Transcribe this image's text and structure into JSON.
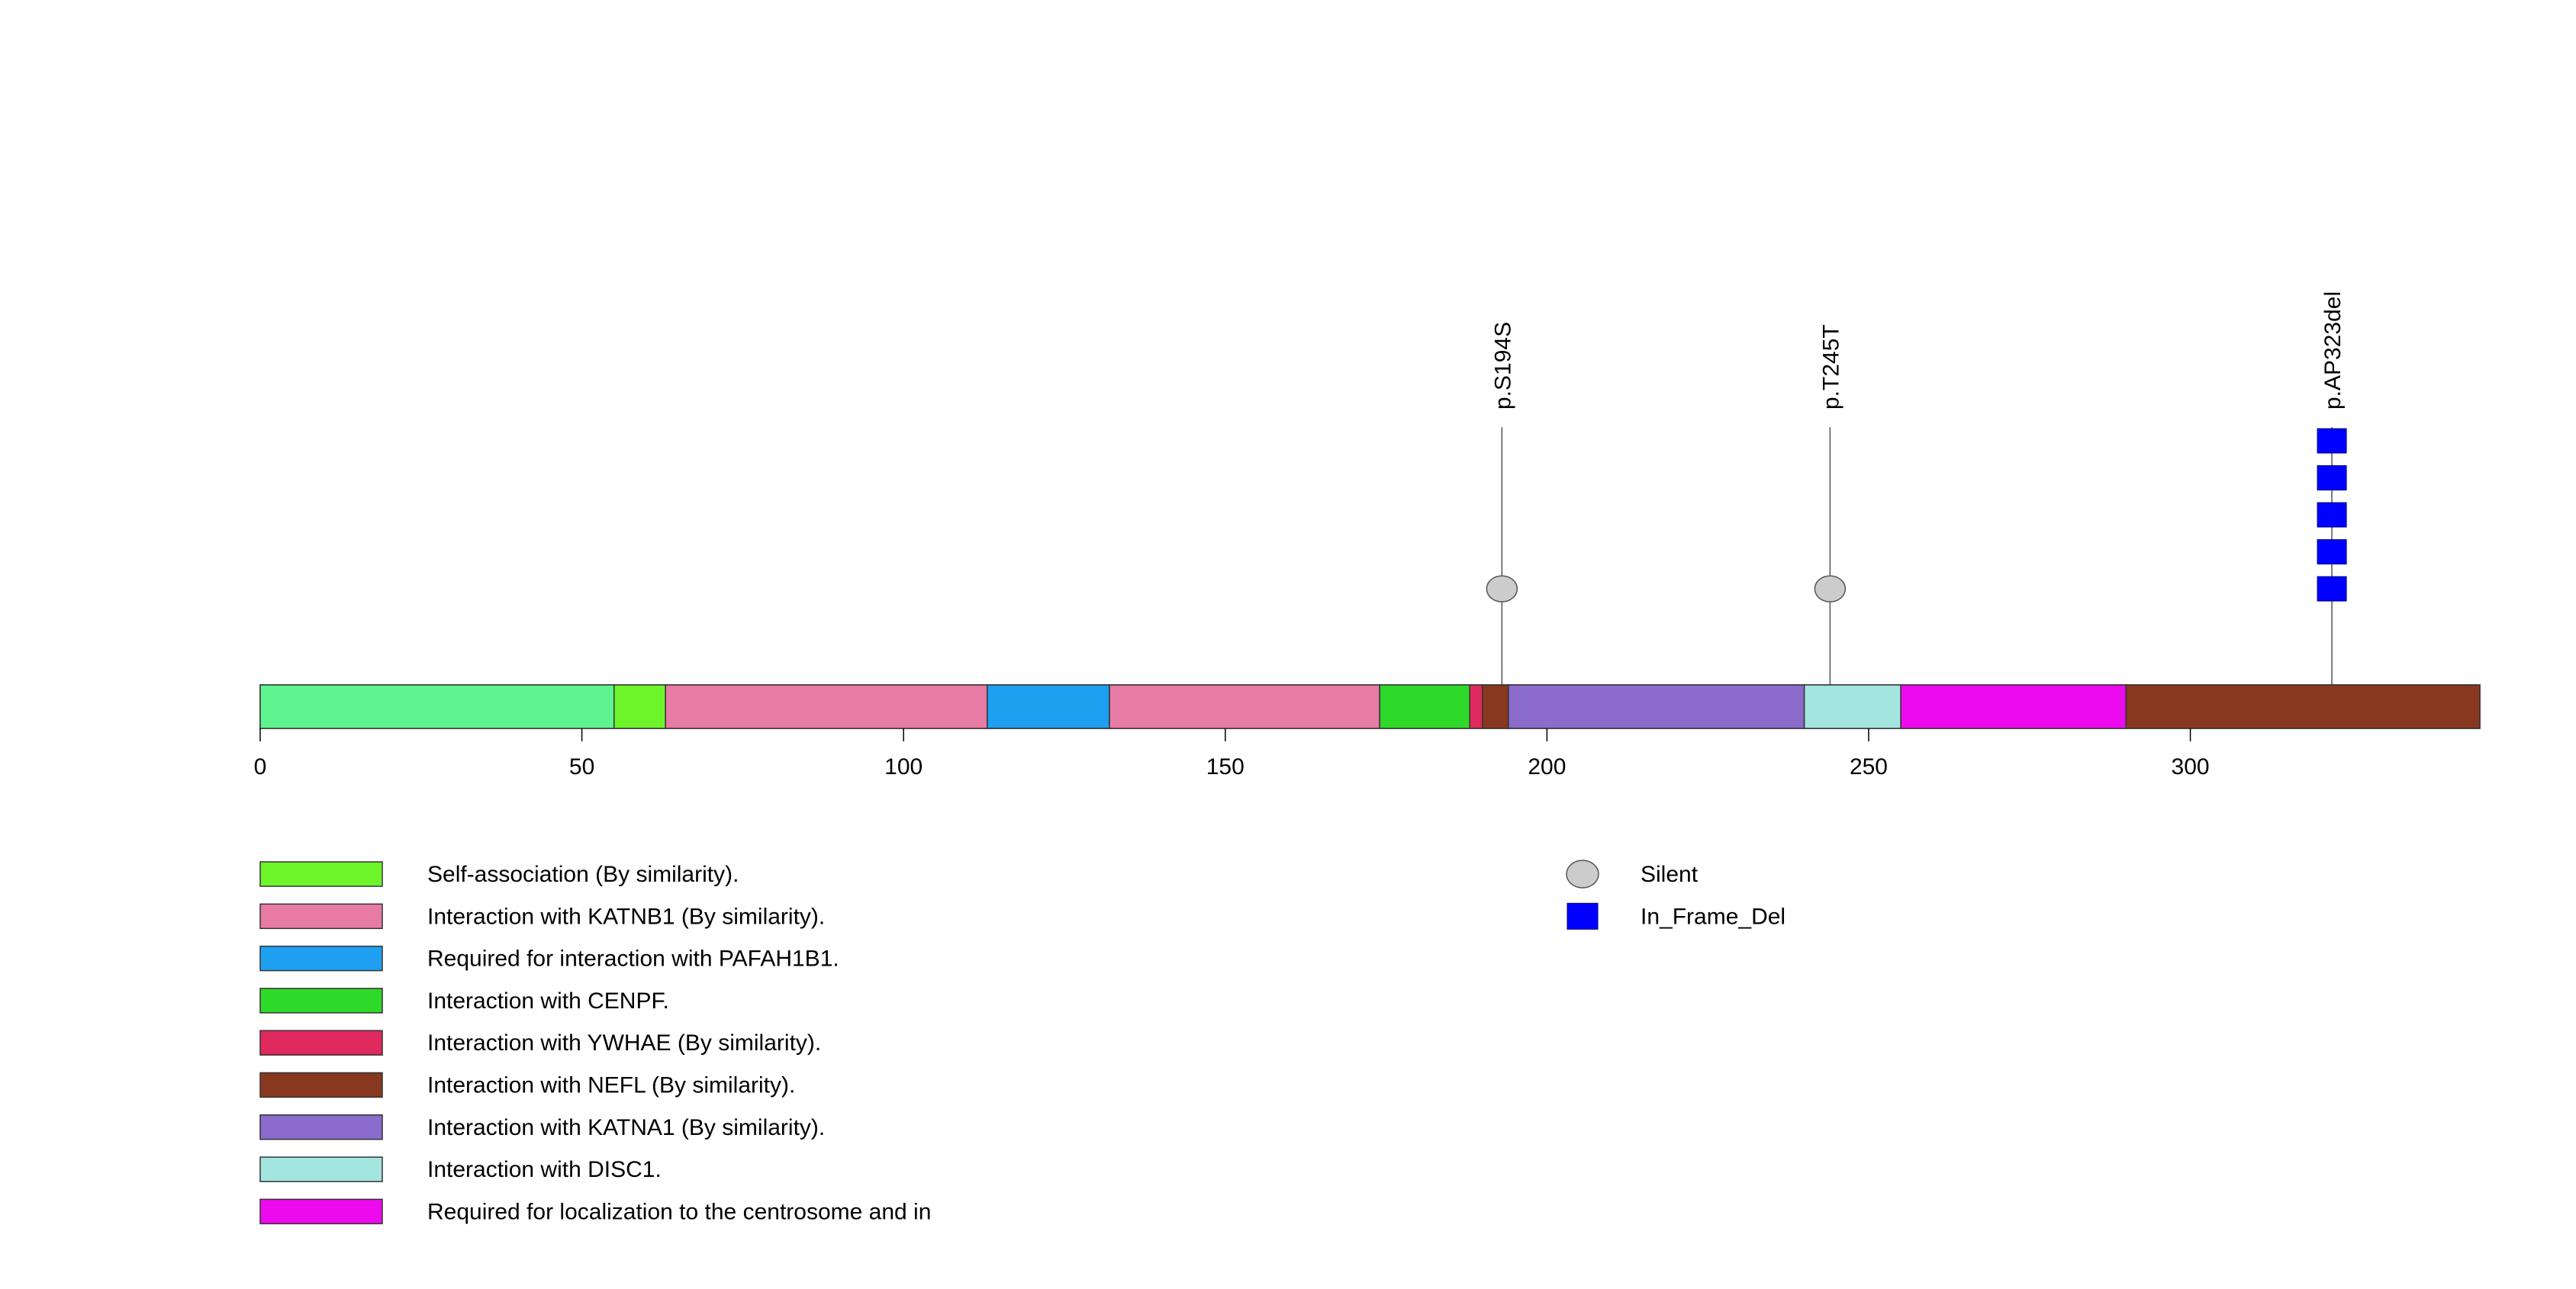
{
  "chart_data": {
    "type": "lollipop",
    "protein_length": 345,
    "x_axis": {
      "ticks": [
        0,
        50,
        100,
        150,
        200,
        250,
        300
      ],
      "range": [
        0,
        345
      ]
    },
    "backbone_color": "#8b3a1f",
    "domains": [
      {
        "start": 0,
        "end": 55,
        "color": "#5ef590",
        "label_ref": null
      },
      {
        "start": 55,
        "end": 63,
        "color": "#6ef52a",
        "label_ref": 0
      },
      {
        "start": 63,
        "end": 113,
        "color": "#e87ba4",
        "label_ref": 1
      },
      {
        "start": 113,
        "end": 132,
        "color": "#1e9fef",
        "label_ref": 2
      },
      {
        "start": 132,
        "end": 174,
        "color": "#e87ba4",
        "label_ref": 1
      },
      {
        "start": 174,
        "end": 188,
        "color": "#2fd92a",
        "label_ref": 3
      },
      {
        "start": 188,
        "end": 190,
        "color": "#e0295d",
        "label_ref": 4
      },
      {
        "start": 190,
        "end": 194,
        "color": "#87381f",
        "label_ref": 5
      },
      {
        "start": 194,
        "end": 240,
        "color": "#8b6bcc",
        "label_ref": 6
      },
      {
        "start": 240,
        "end": 255,
        "color": "#a3e6e0",
        "label_ref": 7
      },
      {
        "start": 255,
        "end": 290,
        "color": "#ee0aee",
        "label_ref": 8
      },
      {
        "start": 290,
        "end": 345,
        "color": "#87381f",
        "label_ref": 5
      }
    ],
    "mutations": [
      {
        "position": 193,
        "label": "p.S194S",
        "type": "Silent",
        "count": 1
      },
      {
        "position": 244,
        "label": "p.T245T",
        "type": "Silent",
        "count": 1
      },
      {
        "position": 322,
        "label": "p.AP323del",
        "type": "In_Frame_Del",
        "count": 5
      }
    ],
    "domain_legend": [
      {
        "label": "Self-association (By similarity).",
        "color": "#6ef52a"
      },
      {
        "label": "Interaction with KATNB1 (By similarity).",
        "color": "#e87ba4"
      },
      {
        "label": "Required for interaction with PAFAH1B1.",
        "color": "#1e9fef"
      },
      {
        "label": "Interaction with CENPF.",
        "color": "#2fd92a"
      },
      {
        "label": "Interaction with YWHAE (By similarity).",
        "color": "#e0295d"
      },
      {
        "label": "Interaction with NEFL (By similarity).",
        "color": "#87381f"
      },
      {
        "label": "Interaction with KATNA1 (By similarity).",
        "color": "#8b6bcc"
      },
      {
        "label": "Interaction with DISC1.",
        "color": "#a3e6e0"
      },
      {
        "label": "Required for localization to the centrosome and in",
        "color": "#ee0aee"
      }
    ],
    "mutation_legend": [
      {
        "label": "Silent",
        "shape": "circle",
        "color": "#cccccc"
      },
      {
        "label": "In_Frame_Del",
        "shape": "square",
        "color": "#0000ff"
      }
    ]
  }
}
